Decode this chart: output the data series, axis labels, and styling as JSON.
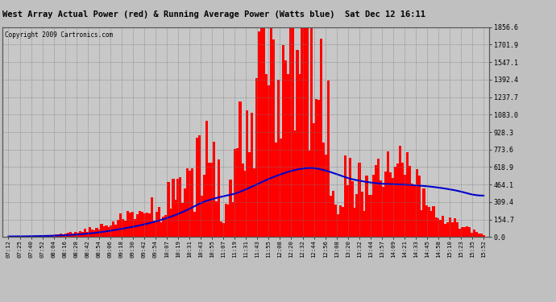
{
  "title": "West Array Actual Power (red) & Running Average Power (Watts blue)  Sat Dec 12 16:11",
  "copyright": "Copyright 2009 Cartronics.com",
  "bg_color": "#c0c0c0",
  "plot_bg_color": "#c8c8c8",
  "grid_color": "#888888",
  "title_color": "#000000",
  "tick_color": "#000000",
  "red_color": "#ff0000",
  "blue_color": "#0000cc",
  "yticks": [
    0.0,
    154.7,
    309.4,
    464.1,
    618.9,
    773.6,
    928.3,
    1083.0,
    1237.7,
    1392.4,
    1547.1,
    1701.9,
    1856.6
  ],
  "xtick_labels": [
    "07:12",
    "07:25",
    "07:40",
    "07:52",
    "08:04",
    "08:16",
    "08:28",
    "08:42",
    "08:54",
    "09:06",
    "09:18",
    "09:30",
    "09:42",
    "09:54",
    "10:07",
    "10:19",
    "10:31",
    "10:43",
    "10:55",
    "11:07",
    "11:19",
    "11:31",
    "11:43",
    "11:55",
    "12:08",
    "12:20",
    "12:32",
    "12:44",
    "12:56",
    "13:08",
    "13:20",
    "13:32",
    "13:44",
    "13:57",
    "14:09",
    "14:21",
    "14:33",
    "14:45",
    "14:58",
    "15:10",
    "15:23",
    "15:35",
    "15:52"
  ],
  "actual_power": [
    5,
    8,
    10,
    15,
    22,
    35,
    50,
    70,
    100,
    140,
    185,
    230,
    280,
    340,
    410,
    500,
    600,
    720,
    860,
    320,
    750,
    1250,
    1480,
    1550,
    1856,
    1780,
    1720,
    1850,
    1380,
    280,
    750,
    580,
    350,
    680,
    720,
    760,
    560,
    380,
    260,
    180,
    120,
    70,
    20
  ],
  "running_avg": [
    5,
    6,
    7,
    9,
    12,
    16,
    21,
    28,
    40,
    55,
    72,
    90,
    110,
    135,
    165,
    200,
    245,
    300,
    365,
    350,
    370,
    420,
    475,
    510,
    560,
    590,
    610,
    625,
    610,
    540,
    520,
    500,
    475,
    470,
    468,
    465,
    460,
    450,
    440,
    425,
    405,
    380,
    340
  ],
  "ymax": 1856.6,
  "ymin": 0.0
}
